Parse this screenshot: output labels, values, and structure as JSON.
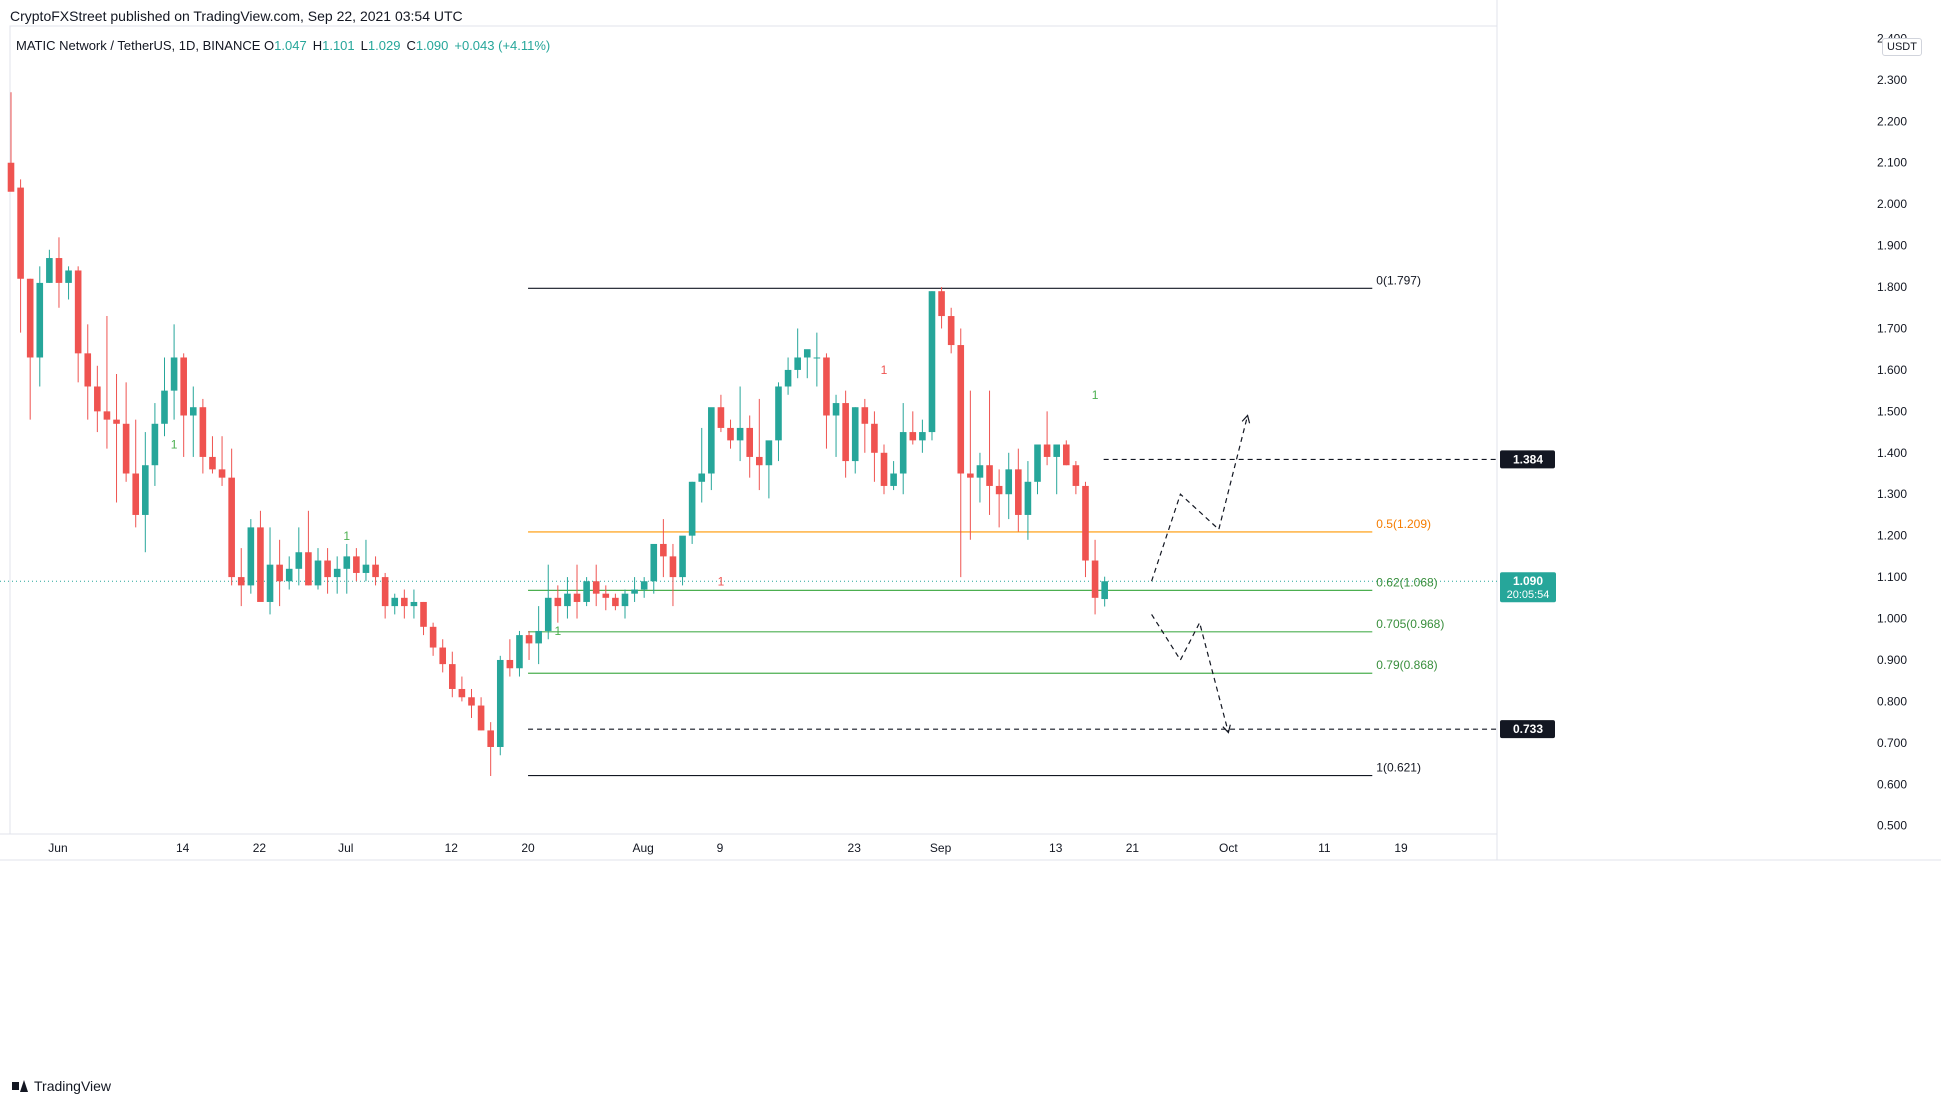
{
  "header": {
    "publisher": "CryptoFXStreet published on TradingView.com, Sep 22, 2021 03:54 UTC",
    "symbol": "MATIC Network / TetherUS, 1D, BINANCE",
    "ohlc": [
      {
        "key": "O",
        "value": "1.047"
      },
      {
        "key": "H",
        "value": "1.101"
      },
      {
        "key": "L",
        "value": "1.029"
      },
      {
        "key": "C",
        "value": "1.090"
      },
      {
        "key": "",
        "value": "+0.043 (+4.11%)"
      }
    ]
  },
  "footer": {
    "logo_text": "TradingView"
  },
  "colors": {
    "up": "#26a69a",
    "down": "#ef5350",
    "fib_line": "#131722",
    "fib_05": "#ff9800",
    "fib_green": "#4caf50",
    "label_dark": "#131722",
    "price_tag": "#26a69a",
    "axis_text": "#131722",
    "border": "#e0e3eb"
  },
  "chart_data": {
    "type": "candlestick",
    "currency": "USDT",
    "y_range": [
      0.48,
      2.43
    ],
    "y_ticks": [
      "2.400",
      "2.300",
      "2.200",
      "2.100",
      "2.000",
      "1.900",
      "1.800",
      "1.700",
      "1.600",
      "1.500",
      "1.400",
      "1.300",
      "1.200",
      "1.100",
      "1.000",
      "0.900",
      "0.800",
      "0.700",
      "0.600",
      "0.500"
    ],
    "x_start_date": "2021-05-27",
    "x_end_date": "2021-10-29",
    "x_ticks": [
      {
        "label": "Jun",
        "date": "2021-06-01"
      },
      {
        "label": "14",
        "date": "2021-06-14"
      },
      {
        "label": "22",
        "date": "2021-06-22"
      },
      {
        "label": "Jul",
        "date": "2021-07-01"
      },
      {
        "label": "12",
        "date": "2021-07-12"
      },
      {
        "label": "20",
        "date": "2021-07-20"
      },
      {
        "label": "Aug",
        "date": "2021-08-01"
      },
      {
        "label": "9",
        "date": "2021-08-09"
      },
      {
        "label": "23",
        "date": "2021-08-23"
      },
      {
        "label": "Sep",
        "date": "2021-09-01"
      },
      {
        "label": "13",
        "date": "2021-09-13"
      },
      {
        "label": "21",
        "date": "2021-09-21"
      },
      {
        "label": "Oct",
        "date": "2021-10-01"
      },
      {
        "label": "11",
        "date": "2021-10-11"
      },
      {
        "label": "19",
        "date": "2021-10-19"
      }
    ],
    "candles_ohlc": [
      [
        2.1,
        2.27,
        2.04,
        2.03
      ],
      [
        2.04,
        2.06,
        1.69,
        1.82
      ],
      [
        1.82,
        1.82,
        1.48,
        1.63
      ],
      [
        1.63,
        1.85,
        1.56,
        1.81
      ],
      [
        1.81,
        1.89,
        1.81,
        1.87
      ],
      [
        1.87,
        1.92,
        1.75,
        1.81
      ],
      [
        1.81,
        1.85,
        1.77,
        1.84
      ],
      [
        1.84,
        1.85,
        1.57,
        1.64
      ],
      [
        1.64,
        1.71,
        1.48,
        1.56
      ],
      [
        1.56,
        1.61,
        1.45,
        1.5
      ],
      [
        1.5,
        1.73,
        1.41,
        1.48
      ],
      [
        1.48,
        1.59,
        1.28,
        1.47
      ],
      [
        1.47,
        1.57,
        1.33,
        1.35
      ],
      [
        1.35,
        1.48,
        1.22,
        1.25
      ],
      [
        1.25,
        1.45,
        1.16,
        1.37
      ],
      [
        1.37,
        1.52,
        1.32,
        1.47
      ],
      [
        1.47,
        1.63,
        1.44,
        1.55
      ],
      [
        1.55,
        1.71,
        1.48,
        1.63
      ],
      [
        1.63,
        1.64,
        1.39,
        1.49
      ],
      [
        1.49,
        1.56,
        1.39,
        1.51
      ],
      [
        1.51,
        1.53,
        1.35,
        1.39
      ],
      [
        1.39,
        1.44,
        1.35,
        1.36
      ],
      [
        1.36,
        1.44,
        1.32,
        1.34
      ],
      [
        1.34,
        1.41,
        1.08,
        1.1
      ],
      [
        1.1,
        1.17,
        1.03,
        1.08
      ],
      [
        1.08,
        1.24,
        1.06,
        1.22
      ],
      [
        1.22,
        1.26,
        1.05,
        1.04
      ],
      [
        1.04,
        1.22,
        1.01,
        1.13
      ],
      [
        1.13,
        1.19,
        1.03,
        1.09
      ],
      [
        1.09,
        1.15,
        1.07,
        1.12
      ],
      [
        1.12,
        1.22,
        1.08,
        1.16
      ],
      [
        1.16,
        1.26,
        1.08,
        1.08
      ],
      [
        1.08,
        1.17,
        1.07,
        1.14
      ],
      [
        1.14,
        1.17,
        1.06,
        1.1
      ],
      [
        1.1,
        1.15,
        1.06,
        1.12
      ],
      [
        1.12,
        1.18,
        1.06,
        1.15
      ],
      [
        1.15,
        1.17,
        1.09,
        1.11
      ],
      [
        1.11,
        1.19,
        1.09,
        1.13
      ],
      [
        1.13,
        1.15,
        1.08,
        1.1
      ],
      [
        1.1,
        1.11,
        1.0,
        1.03
      ],
      [
        1.03,
        1.06,
        1.01,
        1.05
      ],
      [
        1.05,
        1.07,
        1.0,
        1.03
      ],
      [
        1.03,
        1.07,
        1.0,
        1.04
      ],
      [
        1.04,
        1.04,
        0.96,
        0.98
      ],
      [
        0.98,
        0.99,
        0.91,
        0.93
      ],
      [
        0.93,
        0.95,
        0.87,
        0.89
      ],
      [
        0.89,
        0.92,
        0.81,
        0.83
      ],
      [
        0.83,
        0.86,
        0.8,
        0.81
      ],
      [
        0.81,
        0.83,
        0.76,
        0.79
      ],
      [
        0.79,
        0.81,
        0.73,
        0.73
      ],
      [
        0.73,
        0.75,
        0.62,
        0.69
      ],
      [
        0.69,
        0.91,
        0.67,
        0.9
      ],
      [
        0.9,
        0.95,
        0.86,
        0.88
      ],
      [
        0.88,
        0.97,
        0.86,
        0.96
      ],
      [
        0.96,
        0.97,
        0.9,
        0.94
      ],
      [
        0.94,
        1.03,
        0.89,
        0.97
      ],
      [
        0.97,
        1.13,
        0.95,
        1.05
      ],
      [
        1.05,
        1.08,
        0.99,
        1.03
      ],
      [
        1.03,
        1.1,
        1.0,
        1.06
      ],
      [
        1.06,
        1.13,
        1.0,
        1.04
      ],
      [
        1.04,
        1.1,
        1.03,
        1.09
      ],
      [
        1.09,
        1.13,
        1.03,
        1.06
      ],
      [
        1.06,
        1.08,
        1.02,
        1.05
      ],
      [
        1.05,
        1.06,
        1.02,
        1.03
      ],
      [
        1.03,
        1.07,
        1.0,
        1.06
      ],
      [
        1.06,
        1.1,
        1.04,
        1.07
      ],
      [
        1.07,
        1.1,
        1.05,
        1.09
      ],
      [
        1.09,
        1.15,
        1.06,
        1.18
      ],
      [
        1.18,
        1.24,
        1.1,
        1.15
      ],
      [
        1.15,
        1.18,
        1.03,
        1.1
      ],
      [
        1.1,
        1.19,
        1.08,
        1.2
      ],
      [
        1.2,
        1.33,
        1.18,
        1.33
      ],
      [
        1.33,
        1.46,
        1.28,
        1.35
      ],
      [
        1.35,
        1.48,
        1.31,
        1.51
      ],
      [
        1.51,
        1.54,
        1.45,
        1.46
      ],
      [
        1.46,
        1.48,
        1.41,
        1.43
      ],
      [
        1.43,
        1.56,
        1.38,
        1.46
      ],
      [
        1.46,
        1.49,
        1.34,
        1.39
      ],
      [
        1.39,
        1.53,
        1.31,
        1.37
      ],
      [
        1.37,
        1.4,
        1.29,
        1.43
      ],
      [
        1.43,
        1.57,
        1.38,
        1.56
      ],
      [
        1.56,
        1.63,
        1.54,
        1.6
      ],
      [
        1.6,
        1.7,
        1.58,
        1.63
      ],
      [
        1.63,
        1.64,
        1.58,
        1.65
      ],
      [
        1.63,
        1.69,
        1.56,
        1.63
      ],
      [
        1.63,
        1.64,
        1.41,
        1.49
      ],
      [
        1.49,
        1.54,
        1.39,
        1.52
      ],
      [
        1.52,
        1.55,
        1.34,
        1.38
      ],
      [
        1.38,
        1.51,
        1.35,
        1.51
      ],
      [
        1.51,
        1.53,
        1.4,
        1.47
      ],
      [
        1.47,
        1.5,
        1.33,
        1.4
      ],
      [
        1.4,
        1.42,
        1.3,
        1.32
      ],
      [
        1.32,
        1.38,
        1.31,
        1.35
      ],
      [
        1.35,
        1.52,
        1.3,
        1.45
      ],
      [
        1.45,
        1.5,
        1.42,
        1.43
      ],
      [
        1.43,
        1.48,
        1.4,
        1.45
      ],
      [
        1.45,
        1.79,
        1.43,
        1.79
      ],
      [
        1.79,
        1.8,
        1.7,
        1.73
      ],
      [
        1.73,
        1.75,
        1.64,
        1.66
      ],
      [
        1.66,
        1.7,
        1.1,
        1.35
      ],
      [
        1.35,
        1.55,
        1.19,
        1.34
      ],
      [
        1.34,
        1.4,
        1.28,
        1.37
      ],
      [
        1.37,
        1.55,
        1.25,
        1.32
      ],
      [
        1.32,
        1.36,
        1.22,
        1.3
      ],
      [
        1.3,
        1.4,
        1.24,
        1.36
      ],
      [
        1.36,
        1.41,
        1.21,
        1.25
      ],
      [
        1.25,
        1.38,
        1.19,
        1.33
      ],
      [
        1.33,
        1.42,
        1.3,
        1.42
      ],
      [
        1.42,
        1.5,
        1.37,
        1.39
      ],
      [
        1.39,
        1.42,
        1.3,
        1.42
      ],
      [
        1.42,
        1.43,
        1.37,
        1.37
      ],
      [
        1.37,
        1.38,
        1.3,
        1.32
      ],
      [
        1.32,
        1.33,
        1.1,
        1.14
      ],
      [
        1.14,
        1.19,
        1.01,
        1.05
      ],
      [
        1.047,
        1.101,
        1.029,
        1.09
      ]
    ],
    "fib_levels": [
      {
        "label": "0(1.797)",
        "value": 1.797,
        "color": "#131722"
      },
      {
        "label": "0.5(1.209)",
        "value": 1.209,
        "color": "#ff9800"
      },
      {
        "label": "0.62(1.068)",
        "value": 1.068,
        "color": "#4caf50"
      },
      {
        "label": "0.705(0.968)",
        "value": 0.968,
        "color": "#4caf50"
      },
      {
        "label": "0.79(0.868)",
        "value": 0.868,
        "color": "#4caf50"
      },
      {
        "label": "1(0.621)",
        "value": 0.621,
        "color": "#131722"
      }
    ],
    "horizontal_levels": [
      {
        "label": "1.384",
        "value": 1.384
      },
      {
        "label": "0.733",
        "value": 0.733
      }
    ],
    "last_price": {
      "value": 1.09,
      "label": "1.090",
      "countdown": "20:05:54"
    },
    "markers": [
      {
        "text": "1",
        "color": "#4caf50",
        "index": 17,
        "price": 1.41
      },
      {
        "text": "1",
        "color": "#4caf50",
        "index": 35,
        "price": 1.19
      },
      {
        "text": "1",
        "color": "#4caf50",
        "index": 57,
        "price": 0.96
      },
      {
        "text": "1",
        "color": "#ef5350",
        "index": 74,
        "price": 1.08
      },
      {
        "text": "1",
        "color": "#ef5350",
        "index": 91,
        "price": 1.59
      },
      {
        "text": "1",
        "color": "#4caf50",
        "index": 113,
        "price": 1.53
      }
    ],
    "projection_paths": [
      [
        [
          "2021-09-23",
          1.09
        ],
        [
          "2021-09-26",
          1.3
        ],
        [
          "2021-09-30",
          1.215
        ],
        [
          "2021-10-03",
          1.49
        ]
      ],
      [
        [
          "2021-09-23",
          1.01
        ],
        [
          "2021-09-26",
          0.9
        ],
        [
          "2021-09-28",
          0.99
        ],
        [
          "2021-10-01",
          0.725
        ]
      ]
    ]
  }
}
